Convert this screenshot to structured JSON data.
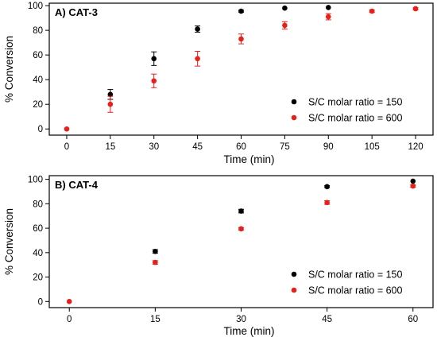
{
  "chart_data": [
    {
      "type": "scatter",
      "title": "A) CAT-3",
      "xlabel": "Time (min)",
      "ylabel": "% Conversion",
      "xlim": [
        -6,
        126
      ],
      "ylim": [
        -5,
        102
      ],
      "xticks": [
        0,
        15,
        30,
        45,
        60,
        75,
        90,
        105,
        120
      ],
      "yticks": [
        0,
        20,
        40,
        60,
        80,
        100
      ],
      "grid": false,
      "legend_position": "bottom-right",
      "error_bars": true,
      "series": [
        {
          "name": "S/C molar ratio = 150",
          "color": "#000000",
          "x": [
            15,
            30,
            45,
            60,
            75,
            90
          ],
          "y": [
            28,
            57,
            81,
            95.5,
            98,
            98.5
          ],
          "err": [
            4,
            5.5,
            2.5,
            0.8,
            0.5,
            0.5
          ]
        },
        {
          "name": "S/C molar ratio = 600",
          "color": "#e8201c",
          "x": [
            0,
            15,
            30,
            45,
            60,
            75,
            90,
            105,
            120
          ],
          "y": [
            0,
            20,
            39,
            57,
            73,
            84,
            91,
            95.5,
            97.5
          ],
          "err": [
            0.5,
            6.5,
            5.5,
            6,
            4,
            3,
            2.5,
            1,
            0.8
          ]
        }
      ]
    },
    {
      "type": "scatter",
      "title": "B) CAT-4",
      "xlabel": "Time (min)",
      "ylabel": "% Conversion",
      "xlim": [
        -3.5,
        63.5
      ],
      "ylim": [
        -5,
        103
      ],
      "xticks": [
        0,
        15,
        30,
        45,
        60
      ],
      "yticks": [
        0,
        20,
        40,
        60,
        80,
        100
      ],
      "grid": false,
      "legend_position": "bottom-right",
      "error_bars": true,
      "series": [
        {
          "name": "S/C molar ratio = 150",
          "color": "#000000",
          "x": [
            15,
            30,
            45,
            60
          ],
          "y": [
            41,
            74,
            94,
            98.5
          ],
          "err": [
            1.5,
            1.5,
            0.8,
            0.5
          ]
        },
        {
          "name": "S/C molar ratio = 600",
          "color": "#e8201c",
          "x": [
            0,
            15,
            30,
            45,
            60
          ],
          "y": [
            0,
            32,
            59.5,
            81,
            94.5
          ],
          "err": [
            0.5,
            1.5,
            1,
            1.5,
            1
          ]
        }
      ]
    }
  ]
}
